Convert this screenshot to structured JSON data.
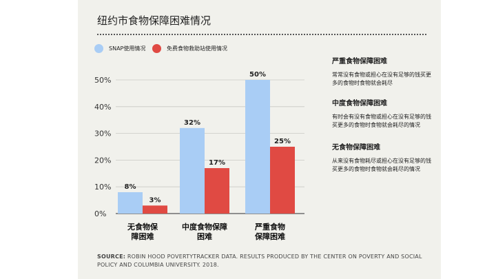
{
  "chart_data": {
    "type": "bar",
    "title": "纽约市食物保障困难情况",
    "categories": [
      "无食物保\n障困难",
      "中度食物保障\n困难",
      "严重食物\n保障困难"
    ],
    "series": [
      {
        "name": "SNAP使用情况",
        "values": [
          8,
          32,
          50
        ],
        "color": "#a9cdf5"
      },
      {
        "name": "免费食物救助站使用情况",
        "values": [
          3,
          17,
          25
        ],
        "color": "#e04a43"
      }
    ],
    "ylim": [
      0,
      50
    ],
    "yticks": [
      "0%",
      "10%",
      "20%",
      "30%",
      "40%",
      "50%"
    ],
    "value_labels": [
      [
        "8%",
        "32%",
        "50%"
      ],
      [
        "3%",
        "17%",
        "25%"
      ]
    ],
    "grid": true,
    "legend": "top-left"
  },
  "notes": [
    {
      "heading": "严重食物保障困难",
      "text": "常常没有食物或担心在没有足够的钱买更多的食物时食物就会耗尽"
    },
    {
      "heading": "中度食物保障困难",
      "text": "有时会有没有食物或担心在没有足够的钱买更多的食物时食物就会耗尽的情况"
    },
    {
      "heading": "无食物保障困难",
      "text": "从来没有食物耗尽或担心在没有足够的钱买更多的食物时食物就会耗尽的情况"
    }
  ],
  "source": {
    "label": "SOURCE:",
    "text": "ROBIN HOOD POVERTYTRACKER DATA. RESULTS PRODUCED BY THE CENTER ON POVERTY AND SOCIAL POLICY AND COLUMBIA UNIVERSITY. 2018."
  }
}
